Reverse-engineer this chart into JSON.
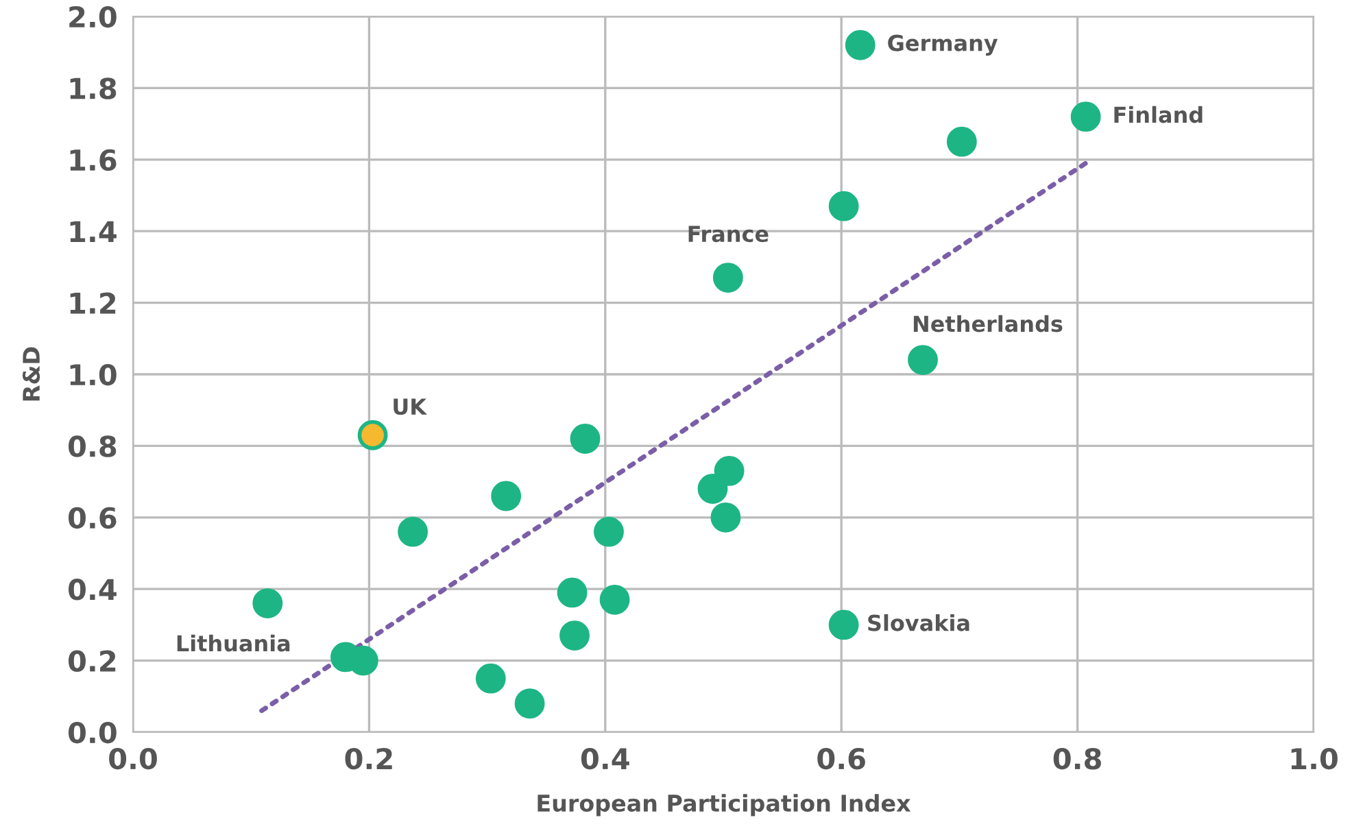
{
  "chart_data": {
    "type": "scatter",
    "xlabel": "European Participation Index",
    "ylabel": "R&D",
    "xlim": [
      0,
      1
    ],
    "ylim": [
      0,
      2
    ],
    "xticks": [
      {
        "value": 0,
        "label": "0.0"
      },
      {
        "value": 0.2,
        "label": "0.2"
      },
      {
        "value": 0.4,
        "label": "0.4"
      },
      {
        "value": 0.6,
        "label": "0.6"
      },
      {
        "value": 0.8,
        "label": "0.8"
      },
      {
        "value": 1,
        "label": "1.0"
      }
    ],
    "yticks": [
      {
        "value": 0,
        "label": "0.0"
      },
      {
        "value": 0.2,
        "label": "0.2"
      },
      {
        "value": 0.4,
        "label": "0.4"
      },
      {
        "value": 0.6,
        "label": "0.6"
      },
      {
        "value": 0.8,
        "label": "0.8"
      },
      {
        "value": 1,
        "label": "1.0"
      },
      {
        "value": 1.2,
        "label": "1.2"
      },
      {
        "value": 1.4,
        "label": "1.4"
      },
      {
        "value": 1.6,
        "label": "1.6"
      },
      {
        "value": 1.8,
        "label": "1.8"
      },
      {
        "value": 2,
        "label": "2.0"
      }
    ],
    "grid": true,
    "marker": "circle",
    "legend": false,
    "series": [
      {
        "color": "#1db584",
        "x": [
          0.616,
          0.807,
          0.702,
          0.602,
          0.504,
          0.669,
          0.383,
          0.505,
          0.491,
          0.316,
          0.502,
          0.237,
          0.403,
          0.372,
          0.408,
          0.114,
          0.374,
          0.602,
          0.18,
          0.195,
          0.303,
          0.336
        ],
        "values": [
          1.92,
          1.72,
          1.65,
          1.47,
          1.27,
          1.04,
          0.82,
          0.73,
          0.68,
          0.66,
          0.6,
          0.56,
          0.56,
          0.39,
          0.37,
          0.36,
          0.27,
          0.3,
          0.21,
          0.2,
          0.15,
          0.08
        ]
      },
      {
        "color": "#f5b82e",
        "x": [
          0.203
        ],
        "values": [
          0.83
        ]
      },
      {
        "type": "line",
        "color": "#7b5ea7",
        "line_style": "dotted",
        "marker": "none",
        "x": [
          0.109,
          0.807
        ],
        "values": [
          0.06,
          1.59
        ]
      }
    ],
    "annotations": [
      {
        "text": "Germany",
        "x": 0.616,
        "y": 1.92
      },
      {
        "text": "Finland",
        "x": 0.807,
        "y": 1.72
      },
      {
        "text": "France",
        "x": 0.504,
        "y": 1.27
      },
      {
        "text": "Netherlands",
        "x": 0.669,
        "y": 1.04
      },
      {
        "text": "UK",
        "x": 0.203,
        "y": 0.83
      },
      {
        "text": "Lithuania",
        "x": 0.114,
        "y": 0.36
      },
      {
        "text": "Slovakia",
        "x": 0.602,
        "y": 0.3
      }
    ]
  }
}
